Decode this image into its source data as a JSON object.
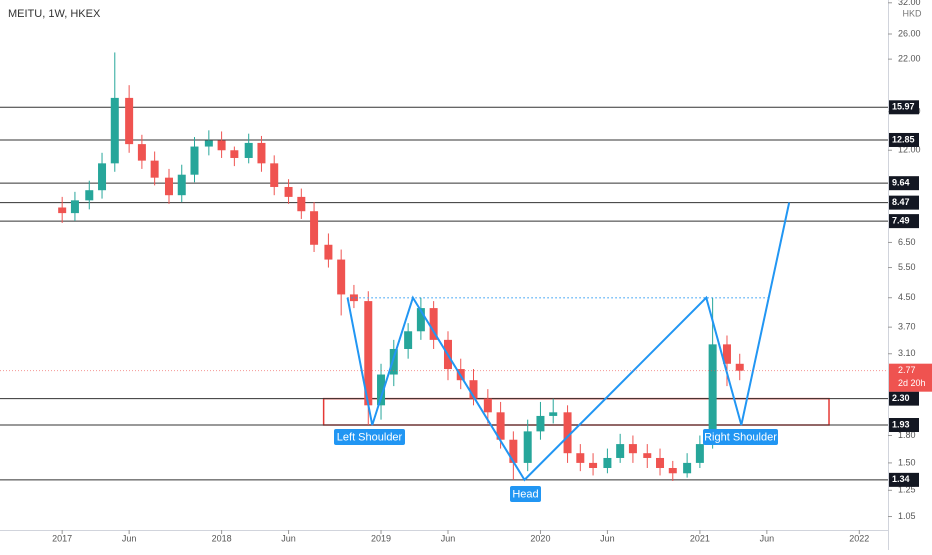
{
  "chart_data": {
    "type": "candlestick",
    "title": "MEITU, 1W, HKEX",
    "currency": "HKD",
    "log_scale": true,
    "xlim": [
      2016.61,
      2022.18
    ],
    "ylim": [
      0.96,
      32.6
    ],
    "xticks": [
      {
        "value": 2017,
        "label": "2017"
      },
      {
        "value": 2017.42,
        "label": "Jun"
      },
      {
        "value": 2018,
        "label": "2018"
      },
      {
        "value": 2018.42,
        "label": "Jun"
      },
      {
        "value": 2019,
        "label": "2019"
      },
      {
        "value": 2019.42,
        "label": "Jun"
      },
      {
        "value": 2020,
        "label": "2020"
      },
      {
        "value": 2020.42,
        "label": "Jun"
      },
      {
        "value": 2021,
        "label": "2021"
      },
      {
        "value": 2021.42,
        "label": "Jun"
      },
      {
        "value": 2022,
        "label": "2022"
      }
    ],
    "yticks": [
      {
        "value": 32,
        "label": "32.00"
      },
      {
        "value": 26,
        "label": "26.00"
      },
      {
        "value": 22,
        "label": "22.00"
      },
      {
        "value": 15.5,
        "label": "15.50"
      },
      {
        "value": 12,
        "label": "12.00"
      },
      {
        "value": 6.5,
        "label": "6.50"
      },
      {
        "value": 5.5,
        "label": "5.50"
      },
      {
        "value": 4.5,
        "label": "4.50"
      },
      {
        "value": 3.7,
        "label": "3.70"
      },
      {
        "value": 3.1,
        "label": "3.10"
      },
      {
        "value": 1.8,
        "label": "1.80"
      },
      {
        "value": 1.5,
        "label": "1.50"
      },
      {
        "value": 1.25,
        "label": "1.25"
      },
      {
        "value": 1.05,
        "label": "1.05"
      }
    ],
    "up_color": "#26a69a",
    "down_color": "#ef5350",
    "x": [
      2017,
      2017.08,
      2017.17,
      2017.25,
      2017.33,
      2017.42,
      2017.5,
      2017.58,
      2017.67,
      2017.75,
      2017.83,
      2017.92,
      2018,
      2018.08,
      2018.17,
      2018.25,
      2018.33,
      2018.42,
      2018.5,
      2018.58,
      2018.67,
      2018.75,
      2018.83,
      2018.92,
      2019,
      2019.08,
      2019.17,
      2019.25,
      2019.33,
      2019.42,
      2019.5,
      2019.58,
      2019.67,
      2019.75,
      2019.83,
      2019.92,
      2020,
      2020.08,
      2020.17,
      2020.25,
      2020.33,
      2020.42,
      2020.5,
      2020.58,
      2020.67,
      2020.75,
      2020.83,
      2020.92,
      2021,
      2021.08,
      2021.17,
      2021.25
    ],
    "open": [
      8.2,
      7.9,
      8.6,
      9.2,
      11.0,
      17.0,
      12.5,
      11.2,
      10.0,
      8.9,
      10.2,
      12.3,
      12.8,
      12.0,
      11.4,
      12.6,
      11.0,
      9.4,
      8.8,
      8.0,
      6.4,
      5.8,
      4.6,
      4.4,
      2.2,
      2.7,
      3.2,
      3.6,
      4.2,
      3.4,
      2.8,
      2.6,
      2.3,
      2.1,
      1.75,
      1.5,
      1.85,
      2.05,
      2.1,
      1.6,
      1.5,
      1.45,
      1.55,
      1.7,
      1.6,
      1.55,
      1.45,
      1.4,
      1.5,
      1.7,
      3.3,
      2.9
    ],
    "high": [
      8.8,
      9.1,
      9.8,
      11.8,
      23,
      18.5,
      13.3,
      11.9,
      10.6,
      10.9,
      13.1,
      13.7,
      13.6,
      12.3,
      13.4,
      13.2,
      11.6,
      9.9,
      9.3,
      8.5,
      6.9,
      6.2,
      4.9,
      4.7,
      2.9,
      3.4,
      3.8,
      4.5,
      4.4,
      3.6,
      3.0,
      2.8,
      2.45,
      2.25,
      1.85,
      2.0,
      2.25,
      2.3,
      2.2,
      1.7,
      1.6,
      1.65,
      1.82,
      1.8,
      1.7,
      1.65,
      1.52,
      1.6,
      1.8,
      4.5,
      3.5,
      3.1
    ],
    "low": [
      7.4,
      7.5,
      8.1,
      8.7,
      10.4,
      11.8,
      10.6,
      9.5,
      8.4,
      8.5,
      9.7,
      11.6,
      11.4,
      10.8,
      11.0,
      10.4,
      8.9,
      8.4,
      7.6,
      6.1,
      5.5,
      4.0,
      4.2,
      1.93,
      2.0,
      2.5,
      3.0,
      3.4,
      3.2,
      2.6,
      2.45,
      2.2,
      1.95,
      1.65,
      1.34,
      1.42,
      1.75,
      1.95,
      1.5,
      1.42,
      1.38,
      1.4,
      1.5,
      1.5,
      1.45,
      1.38,
      1.33,
      1.36,
      1.45,
      1.65,
      2.5,
      2.6
    ],
    "close": [
      7.9,
      8.6,
      9.2,
      11.0,
      17.0,
      12.5,
      11.2,
      10.0,
      8.9,
      10.2,
      12.3,
      12.8,
      12.0,
      11.4,
      12.6,
      11.0,
      9.4,
      8.8,
      8.0,
      6.4,
      5.8,
      4.6,
      4.4,
      2.2,
      2.7,
      3.2,
      3.6,
      4.2,
      3.4,
      2.8,
      2.6,
      2.3,
      2.1,
      1.75,
      1.5,
      1.85,
      2.05,
      2.1,
      1.6,
      1.5,
      1.45,
      1.55,
      1.7,
      1.6,
      1.55,
      1.45,
      1.4,
      1.5,
      1.7,
      3.3,
      2.9,
      2.77
    ],
    "levels": [
      15.97,
      12.85,
      9.64,
      8.47,
      7.49,
      {
        "value": 2.3,
        "label": "2.30"
      },
      1.93,
      1.34
    ],
    "last_price": 2.77,
    "countdown": "2d 20h",
    "pattern": {
      "color": "#2196f3",
      "x": [
        2018.79,
        2018.945,
        2019.2,
        2019.9,
        2021.04,
        2021.26,
        2021.56
      ],
      "y": [
        4.5,
        1.93,
        4.5,
        1.34,
        4.5,
        1.93,
        8.47
      ]
    },
    "neckline": {
      "x": [
        2018.79,
        2021.43
      ],
      "y": 4.5
    },
    "zone": {
      "color": "#e53935",
      "x": [
        2018.64,
        2021.81
      ],
      "y": [
        2.3,
        1.93
      ]
    },
    "annotations": [
      "Left Shoulder",
      "Head",
      "Right Shoulder"
    ]
  }
}
